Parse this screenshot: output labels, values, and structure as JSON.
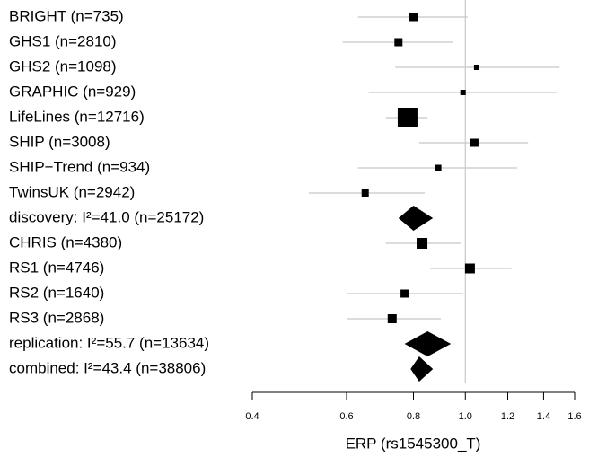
{
  "chart_data": {
    "type": "forest",
    "xlabel": "ERP (rs1545300_T)",
    "log_x": true,
    "xlim": [
      0.4,
      1.6
    ],
    "xticks": [
      0.4,
      0.6,
      0.8,
      {
        "value": 1,
        "label": "1.0"
      },
      1.2,
      1.4,
      1.6
    ],
    "reference": 1,
    "color": "#000000",
    "ci_color": "#c8c8c8",
    "rows": [
      {
        "label": "BRIGHT (n=735)",
        "shape": "square",
        "estimate": 0.8,
        "lower": 0.63,
        "upper": 1.01,
        "weight": 81
      },
      {
        "label": "GHS1 (n=2810)",
        "shape": "square",
        "estimate": 0.75,
        "lower": 0.59,
        "upper": 0.95,
        "weight": 81
      },
      {
        "label": "GHS2 (n=1098)",
        "shape": "square",
        "estimate": 1.05,
        "lower": 0.74,
        "upper": 1.5,
        "weight": 36
      },
      {
        "label": "GRAPHIC (n=929)",
        "shape": "square",
        "estimate": 0.99,
        "lower": 0.66,
        "upper": 1.48,
        "weight": 36
      },
      {
        "label": "LifeLines (n=12716)",
        "shape": "square",
        "estimate": 0.78,
        "lower": 0.71,
        "upper": 0.85,
        "weight": 484
      },
      {
        "label": "SHIP (n=3008)",
        "shape": "square",
        "estimate": 1.04,
        "lower": 0.82,
        "upper": 1.31,
        "weight": 81
      },
      {
        "label": "SHIP−Trend (n=934)",
        "shape": "square",
        "estimate": 0.89,
        "lower": 0.63,
        "upper": 1.25,
        "weight": 49
      },
      {
        "label": "TwinsUK (n=2942)",
        "shape": "square",
        "estimate": 0.65,
        "lower": 0.51,
        "upper": 0.84,
        "weight": 64
      },
      {
        "label": "discovery: I²=41.0 (n=25172)",
        "shape": "diamond",
        "estimate": 0.8,
        "lower": 0.75,
        "upper": 0.87
      },
      {
        "label": "CHRIS (n=4380)",
        "shape": "square",
        "estimate": 0.83,
        "lower": 0.71,
        "upper": 0.98,
        "weight": 144
      },
      {
        "label": "RS1 (n=4746)",
        "shape": "square",
        "estimate": 1.02,
        "lower": 0.86,
        "upper": 1.22,
        "weight": 121
      },
      {
        "label": "RS2 (n=1640)",
        "shape": "square",
        "estimate": 0.77,
        "lower": 0.6,
        "upper": 0.99,
        "weight": 81
      },
      {
        "label": "RS3 (n=2868)",
        "shape": "square",
        "estimate": 0.73,
        "lower": 0.6,
        "upper": 0.9,
        "weight": 100
      },
      {
        "label": "replication: I²=55.7 (n=13634)",
        "shape": "diamond",
        "estimate": 0.85,
        "lower": 0.77,
        "upper": 0.94
      },
      {
        "label": "combined: I²=43.4 (n=38806)",
        "shape": "diamond",
        "estimate": 0.82,
        "lower": 0.79,
        "upper": 0.87
      }
    ]
  }
}
